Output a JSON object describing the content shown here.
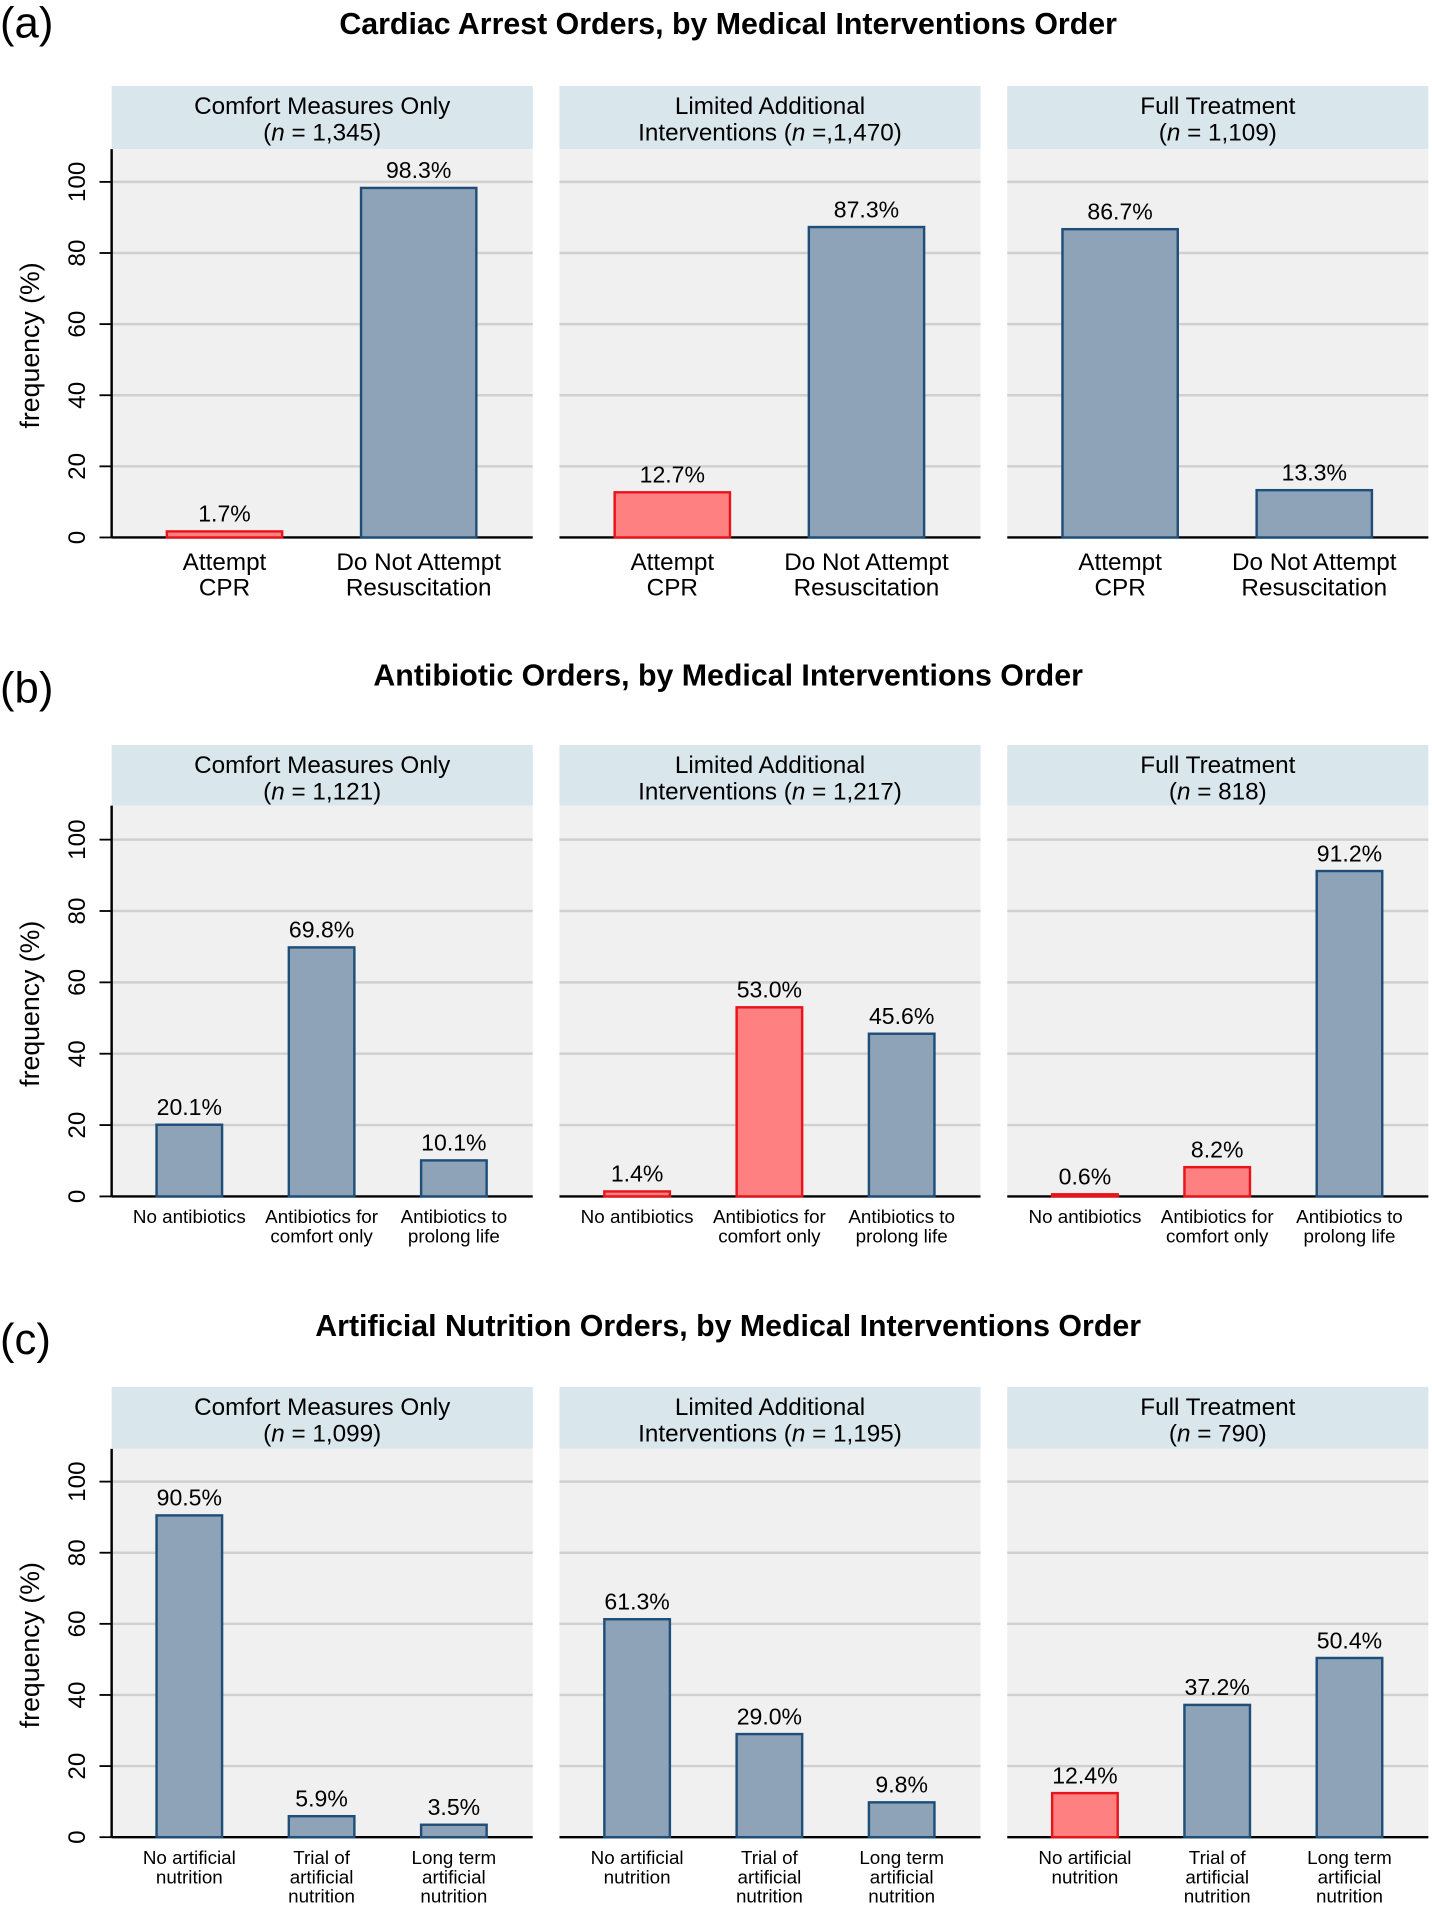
{
  "colors": {
    "highlight_fill": "#ff8080",
    "highlight_stroke": "#e8141b",
    "bar_fill": "#8ea3b8",
    "bar_stroke": "#1f4e79",
    "panel_bg": "#f0f0f0",
    "header_bg": "#d9e6ec",
    "grid": "#d0d0d0"
  },
  "chart_data": [
    {
      "type": "bar",
      "label": "(a)",
      "title": "Cardiac Arrest Orders, by Medical Interventions Order",
      "ylabel": "frequency (%)",
      "ylim": [
        0,
        108
      ],
      "yticks": [
        0,
        20,
        40,
        60,
        80,
        100
      ],
      "grid": true,
      "categories": [
        [
          "Attempt",
          "CPR"
        ],
        [
          "Do Not Attempt",
          "Resuscitation"
        ]
      ],
      "panels": [
        {
          "line1": "Comfort Measures Only",
          "line2_prefix": "",
          "n_value": "= 1,345",
          "values": [
            1.7,
            98.3
          ],
          "labels": [
            "1.7%",
            "98.3%"
          ],
          "highlight": [
            0
          ]
        },
        {
          "line1": "Limited Additional",
          "line2_prefix": "Interventions ",
          "n_value": "=,1,470",
          "values": [
            12.7,
            87.3
          ],
          "labels": [
            "12.7%",
            "87.3%"
          ],
          "highlight": [
            0
          ]
        },
        {
          "line1": "Full Treatment",
          "line2_prefix": "",
          "n_value": "= 1,109",
          "values": [
            86.7,
            13.3
          ],
          "labels": [
            "86.7%",
            "13.3%"
          ],
          "highlight": []
        }
      ]
    },
    {
      "type": "bar",
      "label": "(b)",
      "title": "Antibiotic Orders, by Medical Interventions Order",
      "ylabel": "frequency (%)",
      "ylim": [
        0,
        108
      ],
      "yticks": [
        0,
        20,
        40,
        60,
        80,
        100
      ],
      "grid": true,
      "categories": [
        [
          "No antibiotics"
        ],
        [
          "Antibiotics for",
          "comfort only"
        ],
        [
          "Antibiotics to",
          "prolong life"
        ]
      ],
      "panels": [
        {
          "line1": "Comfort Measures Only",
          "line2_prefix": "",
          "n_value": "= 1,121",
          "values": [
            20.1,
            69.8,
            10.1
          ],
          "labels": [
            "20.1%",
            "69.8%",
            "10.1%"
          ],
          "highlight": []
        },
        {
          "line1": "Limited Additional",
          "line2_prefix": "Interventions ",
          "n_value": "= 1,217",
          "values": [
            1.4,
            53.0,
            45.6
          ],
          "labels": [
            "1.4%",
            "53.0%",
            "45.6%"
          ],
          "highlight": [
            0,
            1
          ]
        },
        {
          "line1": "Full Treatment",
          "line2_prefix": "",
          "n_value": "= 818",
          "values": [
            0.6,
            8.2,
            91.2
          ],
          "labels": [
            "0.6%",
            "8.2%",
            "91.2%"
          ],
          "highlight": [
            0,
            1
          ]
        }
      ]
    },
    {
      "type": "bar",
      "label": "(c)",
      "title": "Artificial Nutrition Orders, by Medical Interventions Order",
      "ylabel": "frequency (%)",
      "ylim": [
        0,
        108
      ],
      "yticks": [
        0,
        20,
        40,
        60,
        80,
        100
      ],
      "grid": true,
      "categories": [
        [
          "No artificial",
          "nutrition"
        ],
        [
          "Trial of",
          "artificial",
          "nutrition"
        ],
        [
          "Long term",
          "artificial",
          "nutrition"
        ]
      ],
      "panels": [
        {
          "line1": "Comfort Measures Only",
          "line2_prefix": "",
          "n_value": "= 1,099",
          "values": [
            90.5,
            5.9,
            3.5
          ],
          "labels": [
            "90.5%",
            "5.9%",
            "3.5%"
          ],
          "highlight": []
        },
        {
          "line1": "Limited Additional",
          "line2_prefix": "Interventions ",
          "n_value": "= 1,195",
          "values": [
            61.3,
            29.0,
            9.8
          ],
          "labels": [
            "61.3%",
            "29.0%",
            "9.8%"
          ],
          "highlight": []
        },
        {
          "line1": "Full Treatment",
          "line2_prefix": "",
          "n_value": "= 790",
          "values": [
            12.4,
            37.2,
            50.4
          ],
          "labels": [
            "12.4%",
            "37.2%",
            "50.4%"
          ],
          "highlight": [
            0
          ]
        }
      ]
    }
  ]
}
